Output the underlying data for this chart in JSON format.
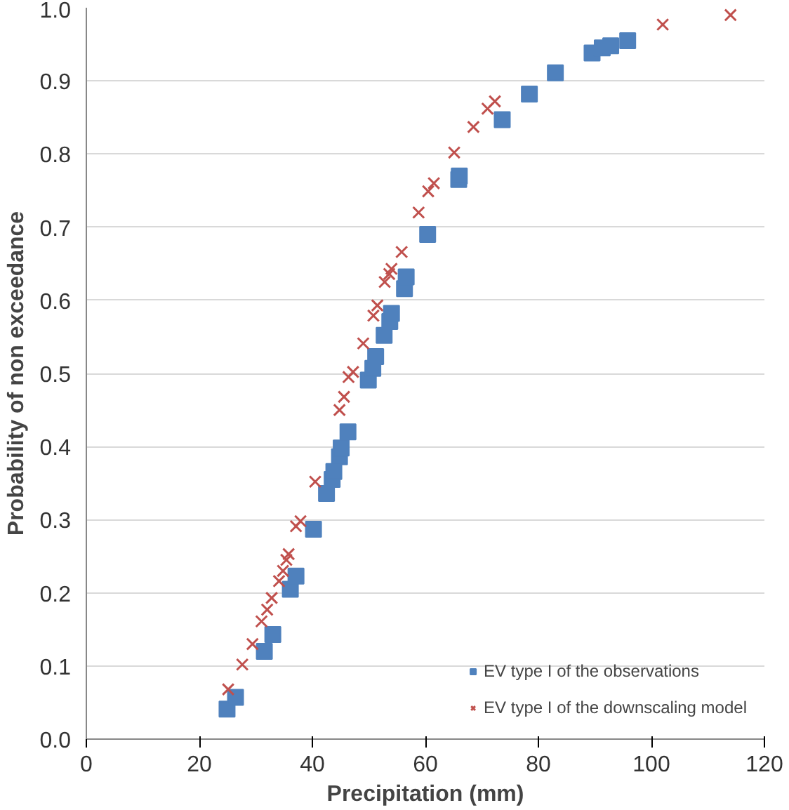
{
  "chart_data": {
    "type": "scatter",
    "xlabel": "Precipitation (mm)",
    "ylabel": "Probability of non exceedance",
    "xlim": [
      0,
      120
    ],
    "ylim": [
      0,
      1
    ],
    "xticks": [
      0,
      20,
      40,
      60,
      80,
      100,
      120
    ],
    "yticks": [
      {
        "value": 0,
        "label": "0.0"
      },
      {
        "value": 0.1,
        "label": "0.1"
      },
      {
        "value": 0.2,
        "label": "0.2"
      },
      {
        "value": 0.3,
        "label": "0.3"
      },
      {
        "value": 0.4,
        "label": "0.4"
      },
      {
        "value": 0.5,
        "label": "0.5"
      },
      {
        "value": 0.6,
        "label": "0.6"
      },
      {
        "value": 0.7,
        "label": "0.7"
      },
      {
        "value": 0.8,
        "label": "0.8"
      },
      {
        "value": 0.9,
        "label": "0.9"
      },
      {
        "value": 1,
        "label": "1.0"
      }
    ],
    "grid": "y",
    "legend": "bottom right",
    "series": [
      {
        "name": "EV type I of the observations",
        "color": "#4f81bd",
        "marker": "square",
        "x": [
          24.9,
          26.4,
          31.5,
          33,
          36.1,
          37.1,
          40.2,
          42.5,
          43.5,
          43.8,
          44.8,
          45.1,
          46.3,
          49.9,
          50.7,
          51.2,
          52.7,
          53.7,
          54,
          56.3,
          56.6,
          60.4,
          65.9,
          66,
          73.6,
          78.4,
          83,
          89.5,
          91.3,
          92.8,
          95.8
        ],
        "values": [
          0.041,
          0.057,
          0.12,
          0.143,
          0.205,
          0.223,
          0.287,
          0.336,
          0.355,
          0.366,
          0.386,
          0.398,
          0.42,
          0.491,
          0.507,
          0.523,
          0.552,
          0.571,
          0.582,
          0.616,
          0.632,
          0.69,
          0.765,
          0.77,
          0.847,
          0.882,
          0.911,
          0.938,
          0.945,
          0.948,
          0.955
        ]
      },
      {
        "name": "EV type I of the downscaling model",
        "color": "#c0504d",
        "marker": "cross",
        "x": [
          25.1,
          27.6,
          29.4,
          31,
          32,
          32.8,
          34.1,
          34.8,
          35.4,
          35.8,
          37.1,
          37.9,
          40.5,
          44.8,
          45.6,
          46.4,
          47.2,
          49,
          50.8,
          51.5,
          52.8,
          53.6,
          54,
          55.8,
          58.8,
          60.5,
          61.5,
          65.1,
          68.5,
          71,
          72.3,
          102,
          114
        ],
        "values": [
          0.068,
          0.102,
          0.13,
          0.161,
          0.177,
          0.193,
          0.216,
          0.23,
          0.245,
          0.253,
          0.291,
          0.298,
          0.352,
          0.45,
          0.468,
          0.495,
          0.502,
          0.541,
          0.579,
          0.593,
          0.625,
          0.636,
          0.643,
          0.666,
          0.72,
          0.749,
          0.76,
          0.802,
          0.837,
          0.862,
          0.872,
          0.977,
          0.99
        ]
      }
    ]
  }
}
